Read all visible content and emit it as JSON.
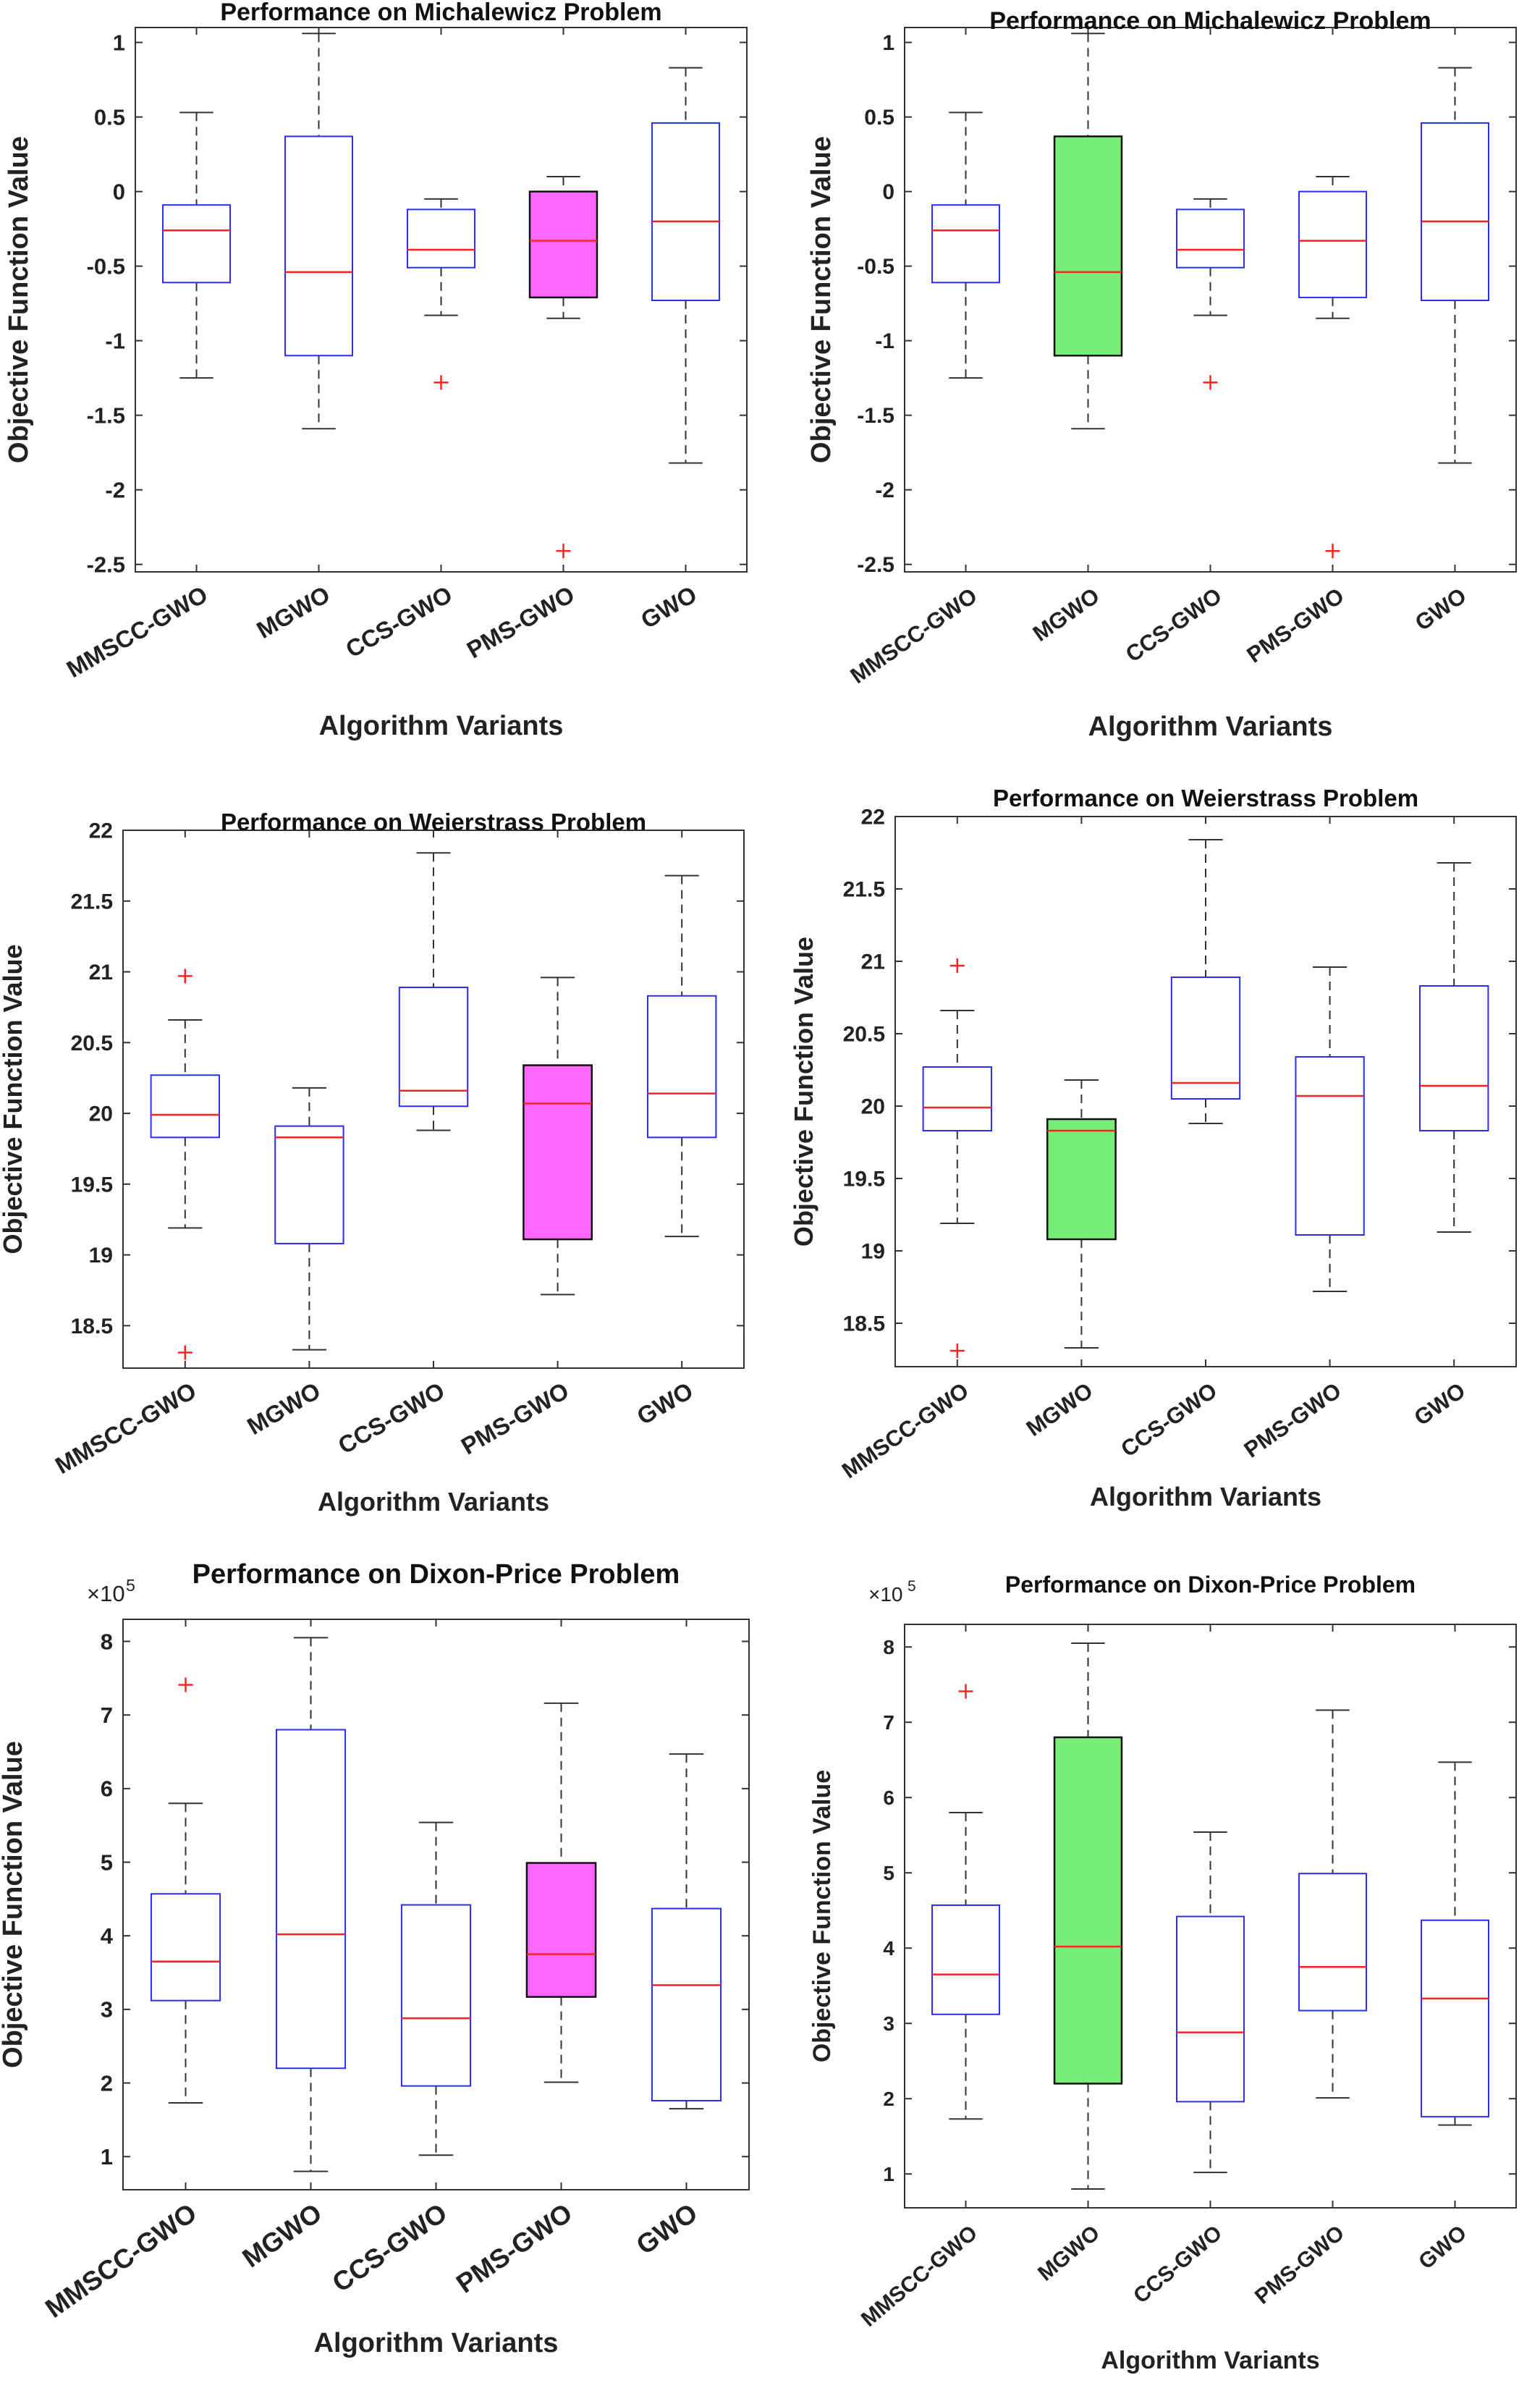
{
  "chart_data": [
    {
      "type": "box",
      "title": "Performance on Michalewicz Problem",
      "xlabel": "Algorithm Variants",
      "ylabel": "Objective Function Value",
      "categories": [
        "MMSCC-GWO",
        "MGWO",
        "CCS-GWO",
        "PMS-GWO",
        "GWO"
      ],
      "ylim": [
        -2.55,
        1.1
      ],
      "yticks": [
        -2.5,
        -2,
        -1.5,
        -1,
        -0.5,
        0,
        0.5,
        1
      ],
      "ytick_labels": [
        "-2.5",
        "-2",
        "-1.5",
        "-1",
        "-0.5",
        "0",
        "0.5",
        "1"
      ],
      "exponent_label": "",
      "highlight": "PMS-GWO",
      "highlight_color": "#ff66ff",
      "boxes": [
        {
          "whisker_low": -1.25,
          "q1": -0.61,
          "median": -0.26,
          "q3": -0.09,
          "whisker_high": 0.53,
          "outliers": []
        },
        {
          "whisker_low": -1.59,
          "q1": -1.1,
          "median": -0.54,
          "q3": 0.37,
          "whisker_high": 1.06,
          "outliers": []
        },
        {
          "whisker_low": -0.83,
          "q1": -0.51,
          "median": -0.39,
          "q3": -0.12,
          "whisker_high": -0.05,
          "outliers": [
            -1.28
          ]
        },
        {
          "whisker_low": -0.85,
          "q1": -0.71,
          "median": -0.33,
          "q3": 0.0,
          "whisker_high": 0.1,
          "outliers": [
            -2.41
          ]
        },
        {
          "whisker_low": -1.82,
          "q1": -0.73,
          "median": -0.2,
          "q3": 0.46,
          "whisker_high": 0.83,
          "outliers": []
        }
      ]
    },
    {
      "type": "box",
      "title": "Performance on Michalewicz Problem",
      "xlabel": "Algorithm Variants",
      "ylabel": "Objective Function Value",
      "categories": [
        "MMSCC-GWO",
        "MGWO",
        "CCS-GWO",
        "PMS-GWO",
        "GWO"
      ],
      "ylim": [
        -2.55,
        1.1
      ],
      "yticks": [
        -2.5,
        -2,
        -1.5,
        -1,
        -0.5,
        0,
        0.5,
        1
      ],
      "ytick_labels": [
        "-2.5",
        "-2",
        "-1.5",
        "-1",
        "-0.5",
        "0",
        "0.5",
        "1"
      ],
      "exponent_label": "",
      "highlight": "MGWO",
      "highlight_color": "#77ee77",
      "boxes": [
        {
          "whisker_low": -1.25,
          "q1": -0.61,
          "median": -0.26,
          "q3": -0.09,
          "whisker_high": 0.53,
          "outliers": []
        },
        {
          "whisker_low": -1.59,
          "q1": -1.1,
          "median": -0.54,
          "q3": 0.37,
          "whisker_high": 1.06,
          "outliers": []
        },
        {
          "whisker_low": -0.83,
          "q1": -0.51,
          "median": -0.39,
          "q3": -0.12,
          "whisker_high": -0.05,
          "outliers": [
            -1.28
          ]
        },
        {
          "whisker_low": -0.85,
          "q1": -0.71,
          "median": -0.33,
          "q3": 0.0,
          "whisker_high": 0.1,
          "outliers": [
            -2.41
          ]
        },
        {
          "whisker_low": -1.82,
          "q1": -0.73,
          "median": -0.2,
          "q3": 0.46,
          "whisker_high": 0.83,
          "outliers": []
        }
      ]
    },
    {
      "type": "box",
      "title": "Performance on Weierstrass Problem",
      "xlabel": "Algorithm Variants",
      "ylabel": "Objective Function Value",
      "categories": [
        "MMSCC-GWO",
        "MGWO",
        "CCS-GWO",
        "PMS-GWO",
        "GWO"
      ],
      "ylim": [
        18.2,
        22.0
      ],
      "yticks": [
        18.5,
        19,
        19.5,
        20,
        20.5,
        21,
        21.5,
        22
      ],
      "ytick_labels": [
        "18.5",
        "19",
        "19.5",
        "20",
        "20.5",
        "21",
        "21.5",
        "22"
      ],
      "exponent_label": "",
      "highlight": "PMS-GWO",
      "highlight_color": "#ff66ff",
      "boxes": [
        {
          "whisker_low": 19.19,
          "q1": 19.83,
          "median": 19.99,
          "q3": 20.27,
          "whisker_high": 20.66,
          "outliers": [
            20.97,
            18.31
          ]
        },
        {
          "whisker_low": 18.33,
          "q1": 19.08,
          "median": 19.83,
          "q3": 19.91,
          "whisker_high": 20.18,
          "outliers": []
        },
        {
          "whisker_low": 19.88,
          "q1": 20.05,
          "median": 20.16,
          "q3": 20.89,
          "whisker_high": 21.84,
          "outliers": []
        },
        {
          "whisker_low": 18.72,
          "q1": 19.11,
          "median": 20.07,
          "q3": 20.34,
          "whisker_high": 20.96,
          "outliers": []
        },
        {
          "whisker_low": 19.13,
          "q1": 19.83,
          "median": 20.14,
          "q3": 20.83,
          "whisker_high": 21.68,
          "outliers": []
        }
      ]
    },
    {
      "type": "box",
      "title": "Performance on Weierstrass Problem",
      "xlabel": "Algorithm Variants",
      "ylabel": "Objective Function Value",
      "categories": [
        "MMSCC-GWO",
        "MGWO",
        "CCS-GWO",
        "PMS-GWO",
        "GWO"
      ],
      "ylim": [
        18.2,
        22.0
      ],
      "yticks": [
        18.5,
        19,
        19.5,
        20,
        20.5,
        21,
        21.5,
        22
      ],
      "ytick_labels": [
        "18.5",
        "19",
        "19.5",
        "20",
        "20.5",
        "21",
        "21.5",
        "22"
      ],
      "exponent_label": "",
      "highlight": "MGWO",
      "highlight_color": "#77ee77",
      "boxes": [
        {
          "whisker_low": 19.19,
          "q1": 19.83,
          "median": 19.99,
          "q3": 20.27,
          "whisker_high": 20.66,
          "outliers": [
            20.97,
            18.31
          ]
        },
        {
          "whisker_low": 18.33,
          "q1": 19.08,
          "median": 19.83,
          "q3": 19.91,
          "whisker_high": 20.18,
          "outliers": []
        },
        {
          "whisker_low": 19.88,
          "q1": 20.05,
          "median": 20.16,
          "q3": 20.89,
          "whisker_high": 21.84,
          "outliers": []
        },
        {
          "whisker_low": 18.72,
          "q1": 19.11,
          "median": 20.07,
          "q3": 20.34,
          "whisker_high": 20.96,
          "outliers": []
        },
        {
          "whisker_low": 19.13,
          "q1": 19.83,
          "median": 20.14,
          "q3": 20.83,
          "whisker_high": 21.68,
          "outliers": []
        }
      ]
    },
    {
      "type": "box",
      "title": "Performance on Dixon-Price Problem",
      "xlabel": "Algorithm Variants",
      "ylabel": "Objective Function Value",
      "categories": [
        "MMSCC-GWO",
        "MGWO",
        "CCS-GWO",
        "PMS-GWO",
        "GWO"
      ],
      "ylim": [
        0.55,
        8.3
      ],
      "yticks": [
        1,
        2,
        3,
        4,
        5,
        6,
        7,
        8
      ],
      "ytick_labels": [
        "1",
        "2",
        "3",
        "4",
        "5",
        "6",
        "7",
        "8"
      ],
      "exponent_label": "×10",
      "exponent_power": "5",
      "highlight": "PMS-GWO",
      "highlight_color": "#ff66ff",
      "boxes": [
        {
          "whisker_low": 1.73,
          "q1": 3.12,
          "median": 3.65,
          "q3": 4.57,
          "whisker_high": 5.8,
          "outliers": [
            7.41
          ]
        },
        {
          "whisker_low": 0.8,
          "q1": 2.2,
          "median": 4.02,
          "q3": 6.8,
          "whisker_high": 8.05,
          "outliers": []
        },
        {
          "whisker_low": 1.02,
          "q1": 1.96,
          "median": 2.88,
          "q3": 4.42,
          "whisker_high": 5.54,
          "outliers": []
        },
        {
          "whisker_low": 2.01,
          "q1": 3.17,
          "median": 3.75,
          "q3": 4.99,
          "whisker_high": 7.16,
          "outliers": []
        },
        {
          "whisker_low": 1.65,
          "q1": 1.76,
          "median": 3.33,
          "q3": 4.37,
          "whisker_high": 6.47,
          "outliers": []
        }
      ]
    },
    {
      "type": "box",
      "title": "Performance on Dixon-Price Problem",
      "xlabel": "Algorithm Variants",
      "ylabel": "Objective Function Value",
      "categories": [
        "MMSCC-GWO",
        "MGWO",
        "CCS-GWO",
        "PMS-GWO",
        "GWO"
      ],
      "ylim": [
        0.55,
        8.3
      ],
      "yticks": [
        1,
        2,
        3,
        4,
        5,
        6,
        7,
        8
      ],
      "ytick_labels": [
        "1",
        "2",
        "3",
        "4",
        "5",
        "6",
        "7",
        "8"
      ],
      "exponent_label": "×10",
      "exponent_power": "5",
      "highlight": "MGWO",
      "highlight_color": "#77ee77",
      "boxes": [
        {
          "whisker_low": 1.73,
          "q1": 3.12,
          "median": 3.65,
          "q3": 4.57,
          "whisker_high": 5.8,
          "outliers": [
            7.41
          ]
        },
        {
          "whisker_low": 0.8,
          "q1": 2.2,
          "median": 4.02,
          "q3": 6.8,
          "whisker_high": 8.05,
          "outliers": []
        },
        {
          "whisker_low": 1.02,
          "q1": 1.96,
          "median": 2.88,
          "q3": 4.42,
          "whisker_high": 5.54,
          "outliers": []
        },
        {
          "whisker_low": 2.01,
          "q1": 3.17,
          "median": 3.75,
          "q3": 4.99,
          "whisker_high": 7.16,
          "outliers": []
        },
        {
          "whisker_low": 1.65,
          "q1": 1.76,
          "median": 3.33,
          "q3": 4.37,
          "whisker_high": 6.47,
          "outliers": []
        }
      ]
    }
  ]
}
